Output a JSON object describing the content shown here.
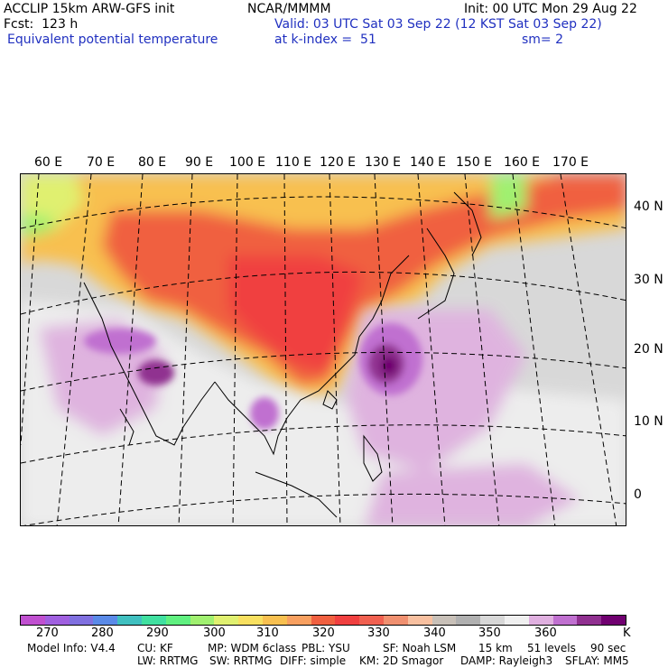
{
  "header": {
    "model": "ACCLIP 15km ARW-GFS init",
    "forecast": "Fcst:  123 h",
    "field": "Equivalent potential temperature",
    "center": "NCAR/MMMM",
    "valid": "Valid: 03 UTC Sat 03 Sep 22 (12 KST Sat 03 Sep 22)",
    "level": "at k-index =  51",
    "init": "Init: 00 UTC Mon 29 Aug 22",
    "smooth": "sm= 2"
  },
  "map": {
    "lon_labels": [
      "60 E",
      "70 E",
      "80 E",
      "90 E",
      "100 E",
      "110 E",
      "120 E",
      "130 E",
      "140 E",
      "150 E",
      "160 E",
      "170 E"
    ],
    "lat_labels": [
      "40 N",
      "30 N",
      "20 N",
      "10 N",
      "0"
    ]
  },
  "colorbar": {
    "labels": [
      "270",
      "280",
      "290",
      "300",
      "310",
      "320",
      "330",
      "340",
      "350",
      "360",
      "K"
    ],
    "colors": [
      "#c050d0",
      "#a060e0",
      "#8070e0",
      "#5a8ae8",
      "#40c0c0",
      "#40e0a0",
      "#60f080",
      "#a0f070",
      "#e0f070",
      "#f8e060",
      "#f8c050",
      "#f8a060",
      "#f06040",
      "#f04040",
      "#f06050",
      "#f09070",
      "#f8c0a0",
      "#c8c0b8",
      "#b0b0b0",
      "#d8d8d8",
      "#f0f0f0",
      "#e0b0e0",
      "#c070d0",
      "#903090",
      "#700070"
    ]
  },
  "footer": {
    "model_info": "Model Info: V4.4",
    "cu": "CU: KF",
    "mp": "MP: WDM 6class",
    "pbl": "PBL: YSU",
    "sf": "SF: Noah LSM",
    "res": "15 km",
    "levels": "51 levels",
    "dt": "90 sec",
    "lw": "LW: RRTMG",
    "sw": "SW: RRTMG",
    "diff": "DIFF: simple",
    "km": "KM: 2D Smagor",
    "damp": "DAMP: Rayleigh3",
    "sflay": "SFLAY: MM5"
  }
}
